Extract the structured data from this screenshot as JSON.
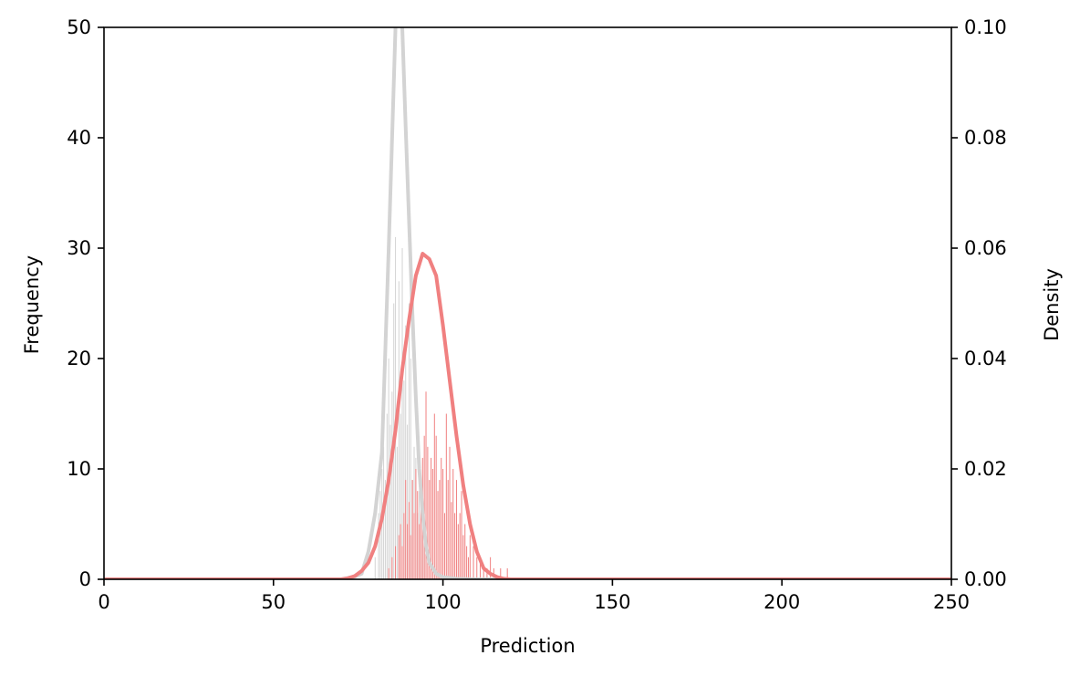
{
  "chart_data": {
    "type": "bar",
    "title": "",
    "xlabel": "Prediction",
    "ylabel": "Frequency",
    "y2label": "Density",
    "xlim": [
      0,
      250
    ],
    "ylim": [
      0,
      50
    ],
    "y2lim": [
      0,
      0.1
    ],
    "xticks": [
      "0",
      "50",
      "100",
      "150",
      "200",
      "250"
    ],
    "yticks": [
      "0",
      "10",
      "20",
      "30",
      "40",
      "50"
    ],
    "y2ticks": [
      "0.00",
      "0.02",
      "0.04",
      "0.06",
      "0.08",
      "0.10"
    ],
    "grid": false,
    "legend": "none",
    "series": [
      {
        "kind": "histogram",
        "color": "#d3d3d3",
        "bin_width": 0.25,
        "x": [
          80,
          81,
          81.5,
          82,
          82.5,
          83,
          83.5,
          84,
          84.5,
          85,
          85.5,
          86,
          86.5,
          87,
          87.5,
          88,
          88.5,
          89,
          89.5,
          90,
          90.5,
          91,
          91.5,
          92,
          92.5,
          93,
          93.5,
          94,
          94.5,
          95
        ],
        "values": [
          2,
          6,
          8,
          10,
          12,
          9,
          15,
          20,
          14,
          17,
          25,
          31,
          12,
          27,
          15,
          30,
          18,
          23,
          14,
          25,
          20,
          9,
          12,
          11,
          6,
          8,
          5,
          4,
          3,
          2
        ]
      },
      {
        "kind": "histogram",
        "color": "#f08080",
        "bin_width": 0.25,
        "x": [
          84,
          85,
          86,
          87,
          87.5,
          88,
          88.5,
          89,
          89.5,
          90,
          90.5,
          91,
          91.5,
          92,
          92.5,
          93,
          93.5,
          94,
          94.5,
          95,
          95.5,
          96,
          96.5,
          97,
          97.5,
          98,
          98.5,
          99,
          99.5,
          100,
          100.5,
          101,
          101.5,
          102,
          102.5,
          103,
          103.5,
          104,
          104.5,
          105,
          105.5,
          106,
          106.5,
          107,
          107.5,
          108,
          109,
          110,
          111,
          112,
          113,
          114,
          115,
          117,
          119
        ],
        "values": [
          1,
          2,
          3,
          4,
          5,
          3,
          6,
          9,
          5,
          7,
          4,
          9,
          6,
          10,
          8,
          5,
          8,
          11,
          13,
          17,
          12,
          9,
          11,
          10,
          15,
          13,
          8,
          9,
          11,
          10,
          6,
          15,
          9,
          12,
          7,
          10,
          6,
          9,
          5,
          6,
          8,
          4,
          5,
          3,
          2,
          4,
          3,
          2,
          2,
          1,
          1,
          2,
          1,
          1,
          1
        ]
      },
      {
        "kind": "density",
        "axis": "y2",
        "color": "#d3d3d3",
        "x": [
          0,
          70,
          74,
          76,
          78,
          80,
          82,
          84,
          85,
          86,
          87,
          88,
          89,
          90,
          91,
          92,
          93,
          94,
          95,
          96,
          98,
          100,
          104,
          110,
          250
        ],
        "values": [
          0,
          0,
          0.0005,
          0.001,
          0.005,
          0.012,
          0.023,
          0.06,
          0.08,
          0.1,
          0.102,
          0.1,
          0.082,
          0.065,
          0.048,
          0.033,
          0.02,
          0.012,
          0.006,
          0.003,
          0.001,
          0.0004,
          0.0001,
          0,
          0
        ]
      },
      {
        "kind": "density",
        "axis": "y2",
        "color": "#f08080",
        "x": [
          0,
          60,
          70,
          72,
          74,
          76,
          78,
          80,
          82,
          84,
          86,
          88,
          90,
          92,
          94,
          96,
          98,
          100,
          102,
          104,
          106,
          108,
          110,
          112,
          114,
          116,
          118,
          120,
          125,
          130,
          250
        ],
        "values": [
          0,
          0,
          0,
          0.0002,
          0.0006,
          0.0015,
          0.003,
          0.006,
          0.011,
          0.018,
          0.027,
          0.038,
          0.047,
          0.055,
          0.059,
          0.058,
          0.055,
          0.046,
          0.036,
          0.026,
          0.017,
          0.01,
          0.005,
          0.002,
          0.001,
          0.0004,
          0.0001,
          0,
          0,
          0,
          0
        ]
      }
    ]
  }
}
